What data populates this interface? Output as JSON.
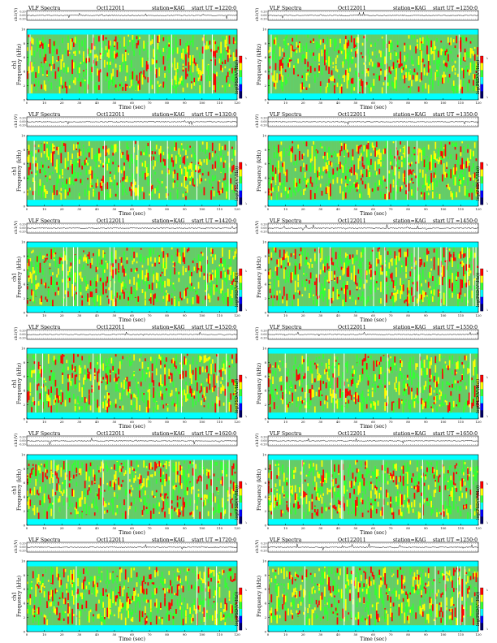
{
  "panel_labels": {
    "program": "VLF Spectra",
    "date": "Oct122011",
    "station_prefix": "station=",
    "station": "KAG",
    "start_prefix": "start  UT  =",
    "channel_label": "ch1(V)",
    "trace_ticks": [
      "0.20",
      "0.00",
      "-0.20"
    ],
    "ylabel_left": "ch1\nFrequency (kHz)",
    "ylabel_right": "Frequency (kHz)",
    "colorbar_label": "log(PSD(V²/Hz))",
    "colorbar_ticks": [
      "-2",
      "-7"
    ],
    "xlabel": "Time (sec)"
  },
  "colors": {
    "background": "#00ffff",
    "low": "#66cc66",
    "mid": "#33ff33",
    "high": "#ffff00",
    "peak": "#ff0000",
    "trace": "#000000"
  },
  "chart_data": [
    {
      "type": "heatmap",
      "title": "VLF Spectra   Oct122011   station=KAG   start UT =1220:0",
      "start_ut": "1220:0",
      "xlabel": "Time (sec)",
      "ylabel": "Frequency (kHz)",
      "xlim": [
        0,
        120
      ],
      "ylim": [
        0,
        10
      ],
      "x_ticks": [
        0,
        10,
        20,
        30,
        40,
        50,
        60,
        70,
        80,
        90,
        100,
        110,
        120
      ],
      "y_ticks": [
        0,
        2,
        4,
        6,
        8,
        10
      ],
      "colorbar_label": "log(PSD(V²/Hz))",
      "colorbar_ticks": [
        "-2",
        "-7"
      ],
      "trace_ylim": [
        -0.2,
        0.2
      ],
      "trace_label": "ch1(V)",
      "grid": false
    },
    {
      "type": "heatmap",
      "title": "VLF Spectra   Oct122011   station=KAG   start UT =1250:0",
      "start_ut": "1250:0",
      "xlabel": "Time (sec)",
      "ylabel": "Frequency (kHz)",
      "xlim": [
        0,
        120
      ],
      "ylim": [
        0,
        10
      ],
      "x_ticks": [
        0,
        10,
        20,
        30,
        40,
        50,
        60,
        70,
        80,
        90,
        100,
        110,
        120
      ],
      "y_ticks": [
        0,
        2,
        4,
        6,
        8,
        10
      ],
      "colorbar_label": "log(PSD(V²/Hz))",
      "colorbar_ticks": [
        "-2",
        "-7"
      ],
      "trace_ylim": [
        -0.2,
        0.2
      ],
      "trace_label": "ch1(V)",
      "grid": false
    },
    {
      "type": "heatmap",
      "title": "VLF Spectra   Oct122011   station=KAG   start UT =1320:0",
      "start_ut": "1320:0",
      "xlabel": "Time (sec)",
      "ylabel": "Frequency (kHz)",
      "xlim": [
        0,
        120
      ],
      "ylim": [
        0,
        10
      ],
      "x_ticks": [
        0,
        10,
        20,
        30,
        40,
        50,
        60,
        70,
        80,
        90,
        100,
        110,
        120
      ],
      "y_ticks": [
        0,
        2,
        4,
        6,
        8,
        10
      ],
      "colorbar_label": "log(PSD(V²/Hz))",
      "colorbar_ticks": [
        "-2",
        "-7"
      ],
      "trace_ylim": [
        -0.2,
        0.2
      ],
      "trace_label": "ch1(V)",
      "grid": false
    },
    {
      "type": "heatmap",
      "title": "VLF Spectra   Oct122011   station=KAG   start UT =1350:0",
      "start_ut": "1350:0",
      "xlabel": "Time (sec)",
      "ylabel": "Frequency (kHz)",
      "xlim": [
        0,
        120
      ],
      "ylim": [
        0,
        10
      ],
      "x_ticks": [
        0,
        10,
        20,
        30,
        40,
        50,
        60,
        70,
        80,
        90,
        100,
        110,
        120
      ],
      "y_ticks": [
        0,
        2,
        4,
        6,
        8,
        10
      ],
      "colorbar_label": "log(PSD(V²/Hz))",
      "colorbar_ticks": [
        "-2",
        "-7"
      ],
      "trace_ylim": [
        -0.2,
        0.2
      ],
      "trace_label": "ch1(V)",
      "grid": false
    },
    {
      "type": "heatmap",
      "title": "VLF Spectra   Oct122011   station=KAG   start UT =1420:0",
      "start_ut": "1420:0",
      "xlabel": "Time (sec)",
      "ylabel": "Frequency (kHz)",
      "xlim": [
        0,
        120
      ],
      "ylim": [
        0,
        10
      ],
      "x_ticks": [
        0,
        10,
        20,
        30,
        40,
        50,
        60,
        70,
        80,
        90,
        100,
        110,
        120
      ],
      "y_ticks": [
        0,
        2,
        4,
        6,
        8,
        10
      ],
      "colorbar_label": "log(PSD(V²/Hz))",
      "colorbar_ticks": [
        "-2",
        "-7"
      ],
      "trace_ylim": [
        -0.2,
        0.2
      ],
      "trace_label": "ch1(V)",
      "grid": false
    },
    {
      "type": "heatmap",
      "title": "VLF Spectra   Oct122011   station=KAG   start UT =1450:0",
      "start_ut": "1450:0",
      "xlabel": "Time (sec)",
      "ylabel": "Frequency (kHz)",
      "xlim": [
        0,
        120
      ],
      "ylim": [
        0,
        10
      ],
      "x_ticks": [
        0,
        10,
        20,
        30,
        40,
        50,
        60,
        70,
        80,
        90,
        100,
        110,
        120
      ],
      "y_ticks": [
        0,
        2,
        4,
        6,
        8,
        10
      ],
      "colorbar_label": "log(PSD(V²/Hz))",
      "colorbar_ticks": [
        "-2",
        "-7"
      ],
      "trace_ylim": [
        -0.2,
        0.2
      ],
      "trace_label": "ch1(V)",
      "grid": false
    },
    {
      "type": "heatmap",
      "title": "VLF Spectra   Oct122011   station=KAG   start UT =1520:0",
      "start_ut": "1520:0",
      "xlabel": "Time (sec)",
      "ylabel": "Frequency (kHz)",
      "xlim": [
        0,
        120
      ],
      "ylim": [
        0,
        10
      ],
      "x_ticks": [
        0,
        10,
        20,
        30,
        40,
        50,
        60,
        70,
        80,
        90,
        100,
        110,
        120
      ],
      "y_ticks": [
        0,
        2,
        4,
        6,
        8,
        10
      ],
      "colorbar_label": "log(PSD(V²/Hz))",
      "colorbar_ticks": [
        "-2",
        "-7"
      ],
      "trace_ylim": [
        -0.2,
        0.2
      ],
      "trace_label": "ch1(V)",
      "grid": false
    },
    {
      "type": "heatmap",
      "title": "VLF Spectra   Oct122011   station=KAG   start UT =1550:0",
      "start_ut": "1550:0",
      "xlabel": "Time (sec)",
      "ylabel": "Frequency (kHz)",
      "xlim": [
        0,
        120
      ],
      "ylim": [
        0,
        10
      ],
      "x_ticks": [
        0,
        10,
        20,
        30,
        40,
        50,
        60,
        70,
        80,
        90,
        100,
        110,
        120
      ],
      "y_ticks": [
        0,
        2,
        4,
        6,
        8,
        10
      ],
      "colorbar_label": "log(PSD(V²/Hz))",
      "colorbar_ticks": [
        "-2",
        "-7"
      ],
      "trace_ylim": [
        -0.2,
        0.2
      ],
      "trace_label": "ch1(V)",
      "grid": false
    },
    {
      "type": "heatmap",
      "title": "VLF Spectra   Oct122011   station=KAG   start UT =1620:0",
      "start_ut": "1620:0",
      "xlabel": "Time (sec)",
      "ylabel": "Frequency (kHz)",
      "xlim": [
        0,
        120
      ],
      "ylim": [
        0,
        10
      ],
      "x_ticks": [
        0,
        10,
        20,
        30,
        40,
        50,
        60,
        70,
        80,
        90,
        100,
        110,
        120
      ],
      "y_ticks": [
        0,
        2,
        4,
        6,
        8,
        10
      ],
      "colorbar_label": "log(PSD(V²/Hz))",
      "colorbar_ticks": [
        "-2",
        "-7"
      ],
      "trace_ylim": [
        -0.2,
        0.2
      ],
      "trace_label": "ch1(V)",
      "grid": false
    },
    {
      "type": "heatmap",
      "title": "VLF Spectra   Oct122011   station=KAG   start UT =1650:0",
      "start_ut": "1650:0",
      "xlabel": "Time (sec)",
      "ylabel": "Frequency (kHz)",
      "xlim": [
        0,
        120
      ],
      "ylim": [
        0,
        10
      ],
      "x_ticks": [
        0,
        10,
        20,
        30,
        40,
        50,
        60,
        70,
        80,
        90,
        100,
        110,
        120
      ],
      "y_ticks": [
        0,
        2,
        4,
        6,
        8,
        10
      ],
      "colorbar_label": "log(PSD(V²/Hz))",
      "colorbar_ticks": [
        "-2",
        "-7"
      ],
      "trace_ylim": [
        -0.2,
        0.2
      ],
      "trace_label": "ch1(V)",
      "grid": false
    },
    {
      "type": "heatmap",
      "title": "VLF Spectra   Oct122011   station=KAG   start UT =1720:0",
      "start_ut": "1720:0",
      "xlabel": "Time (sec)",
      "ylabel": "Frequency (kHz)",
      "xlim": [
        0,
        120
      ],
      "ylim": [
        0,
        10
      ],
      "x_ticks": [
        0,
        10,
        20,
        30,
        40,
        50,
        60,
        70,
        80,
        90,
        100,
        110,
        120
      ],
      "y_ticks": [
        0,
        2,
        4,
        6,
        8,
        10
      ],
      "colorbar_label": "log(PSD(V²/Hz))",
      "colorbar_ticks": [
        "-2",
        "-7"
      ],
      "trace_ylim": [
        -0.2,
        0.2
      ],
      "trace_label": "ch1(V)",
      "grid": false
    },
    {
      "type": "heatmap",
      "title": "VLF Spectra   Oct122011   station=KAG   start UT =1250:0",
      "start_ut": "1250:0",
      "xlabel": "Time (sec)",
      "ylabel": "Frequency (kHz)",
      "xlim": [
        0,
        120
      ],
      "ylim": [
        0,
        10
      ],
      "x_ticks": [
        0,
        10,
        20,
        30,
        40,
        50,
        60,
        70,
        80,
        90,
        100,
        110,
        120
      ],
      "y_ticks": [
        0,
        2,
        4,
        6,
        8,
        10
      ],
      "colorbar_label": "log(PSD(V²/Hz))",
      "colorbar_ticks": [
        "-2",
        "-7"
      ],
      "trace_ylim": [
        -0.2,
        0.2
      ],
      "trace_label": "ch1(V)",
      "grid": false
    }
  ]
}
